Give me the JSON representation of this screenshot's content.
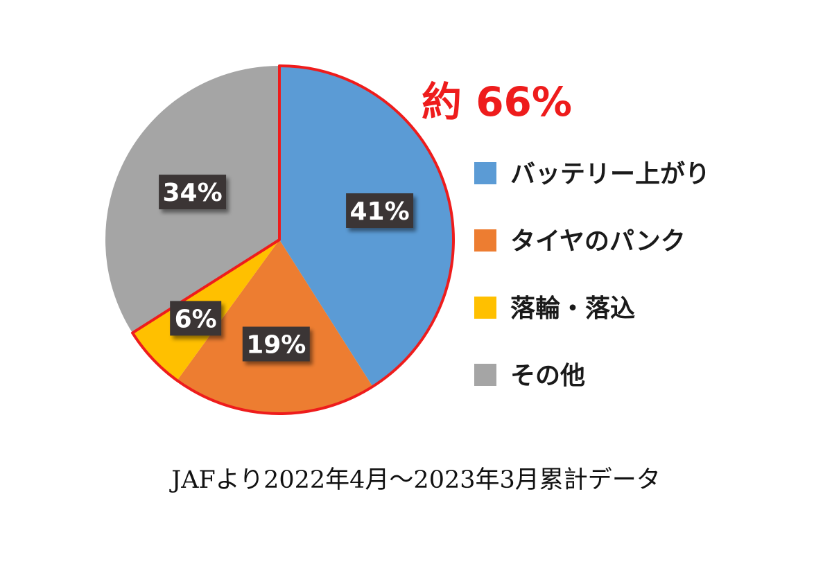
{
  "chart_data": {
    "type": "pie",
    "categories": [
      "バッテリー上がり",
      "タイヤのパンク",
      "落輪・落込",
      "その他"
    ],
    "values": [
      41,
      19,
      6,
      34
    ],
    "data_labels": [
      "41%",
      "19%",
      "6%",
      "34%"
    ],
    "colors": [
      "#5b9bd5",
      "#ed7d31",
      "#ffc000",
      "#a5a5a5"
    ],
    "highlight": {
      "text": "約 66%",
      "covers": [
        "バッテリー上がり",
        "タイヤのパンク",
        "落輪・落込"
      ],
      "outline_color": "#ee1c1c"
    },
    "legend_position": "right",
    "start_angle": "12 o'clock",
    "direction": "clockwise"
  },
  "caption": "JAFより2022年4月～2023年3月累計データ"
}
